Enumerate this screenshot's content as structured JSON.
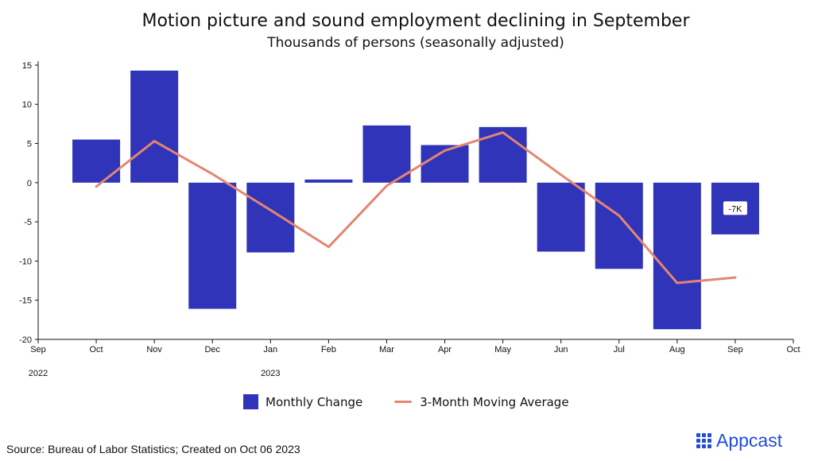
{
  "title": "Motion picture and sound employment declining in September",
  "subtitle": "Thousands of persons (seasonally adjusted)",
  "colors": {
    "bar": "#3034B8",
    "line": "#E58572",
    "axis": "#111111",
    "brand": "#1F4DD8"
  },
  "chart_data": {
    "type": "bar",
    "categories": [
      "Oct",
      "Nov",
      "Dec",
      "Jan",
      "Feb",
      "Mar",
      "Apr",
      "May",
      "Jun",
      "Jul",
      "Aug",
      "Sep"
    ],
    "series": [
      {
        "name": "Monthly Change",
        "type": "bar",
        "values": [
          5.5,
          14.3,
          -16.1,
          -8.9,
          0.4,
          7.3,
          4.8,
          7.1,
          -8.8,
          -11.0,
          -18.7,
          -6.6
        ]
      },
      {
        "name": "3-Month Moving Average",
        "type": "line",
        "values": [
          -0.5,
          5.3,
          1.1,
          -3.5,
          -8.2,
          -0.4,
          4.1,
          6.4,
          1.0,
          -4.2,
          -12.8,
          -12.1
        ]
      }
    ],
    "x_ticks": [
      "Sep",
      "Oct",
      "Nov",
      "Dec",
      "Jan",
      "Feb",
      "Mar",
      "Apr",
      "May",
      "Jun",
      "Jul",
      "Aug",
      "Sep",
      "Oct"
    ],
    "year_labels": [
      "2022",
      "2023"
    ],
    "y_ticks": [
      15,
      10,
      5,
      0,
      -5,
      -10,
      -15,
      -20
    ],
    "ylim": [
      -20,
      15.5
    ],
    "annotation": {
      "label": "-7K",
      "category": "Sep"
    },
    "legend": [
      "Monthly Change",
      "3-Month Moving Average"
    ],
    "legend_position": "bottom-center"
  },
  "source": "Source: Bureau of Labor Statistics; Created on Oct 06 2023",
  "brand": "Appcast"
}
